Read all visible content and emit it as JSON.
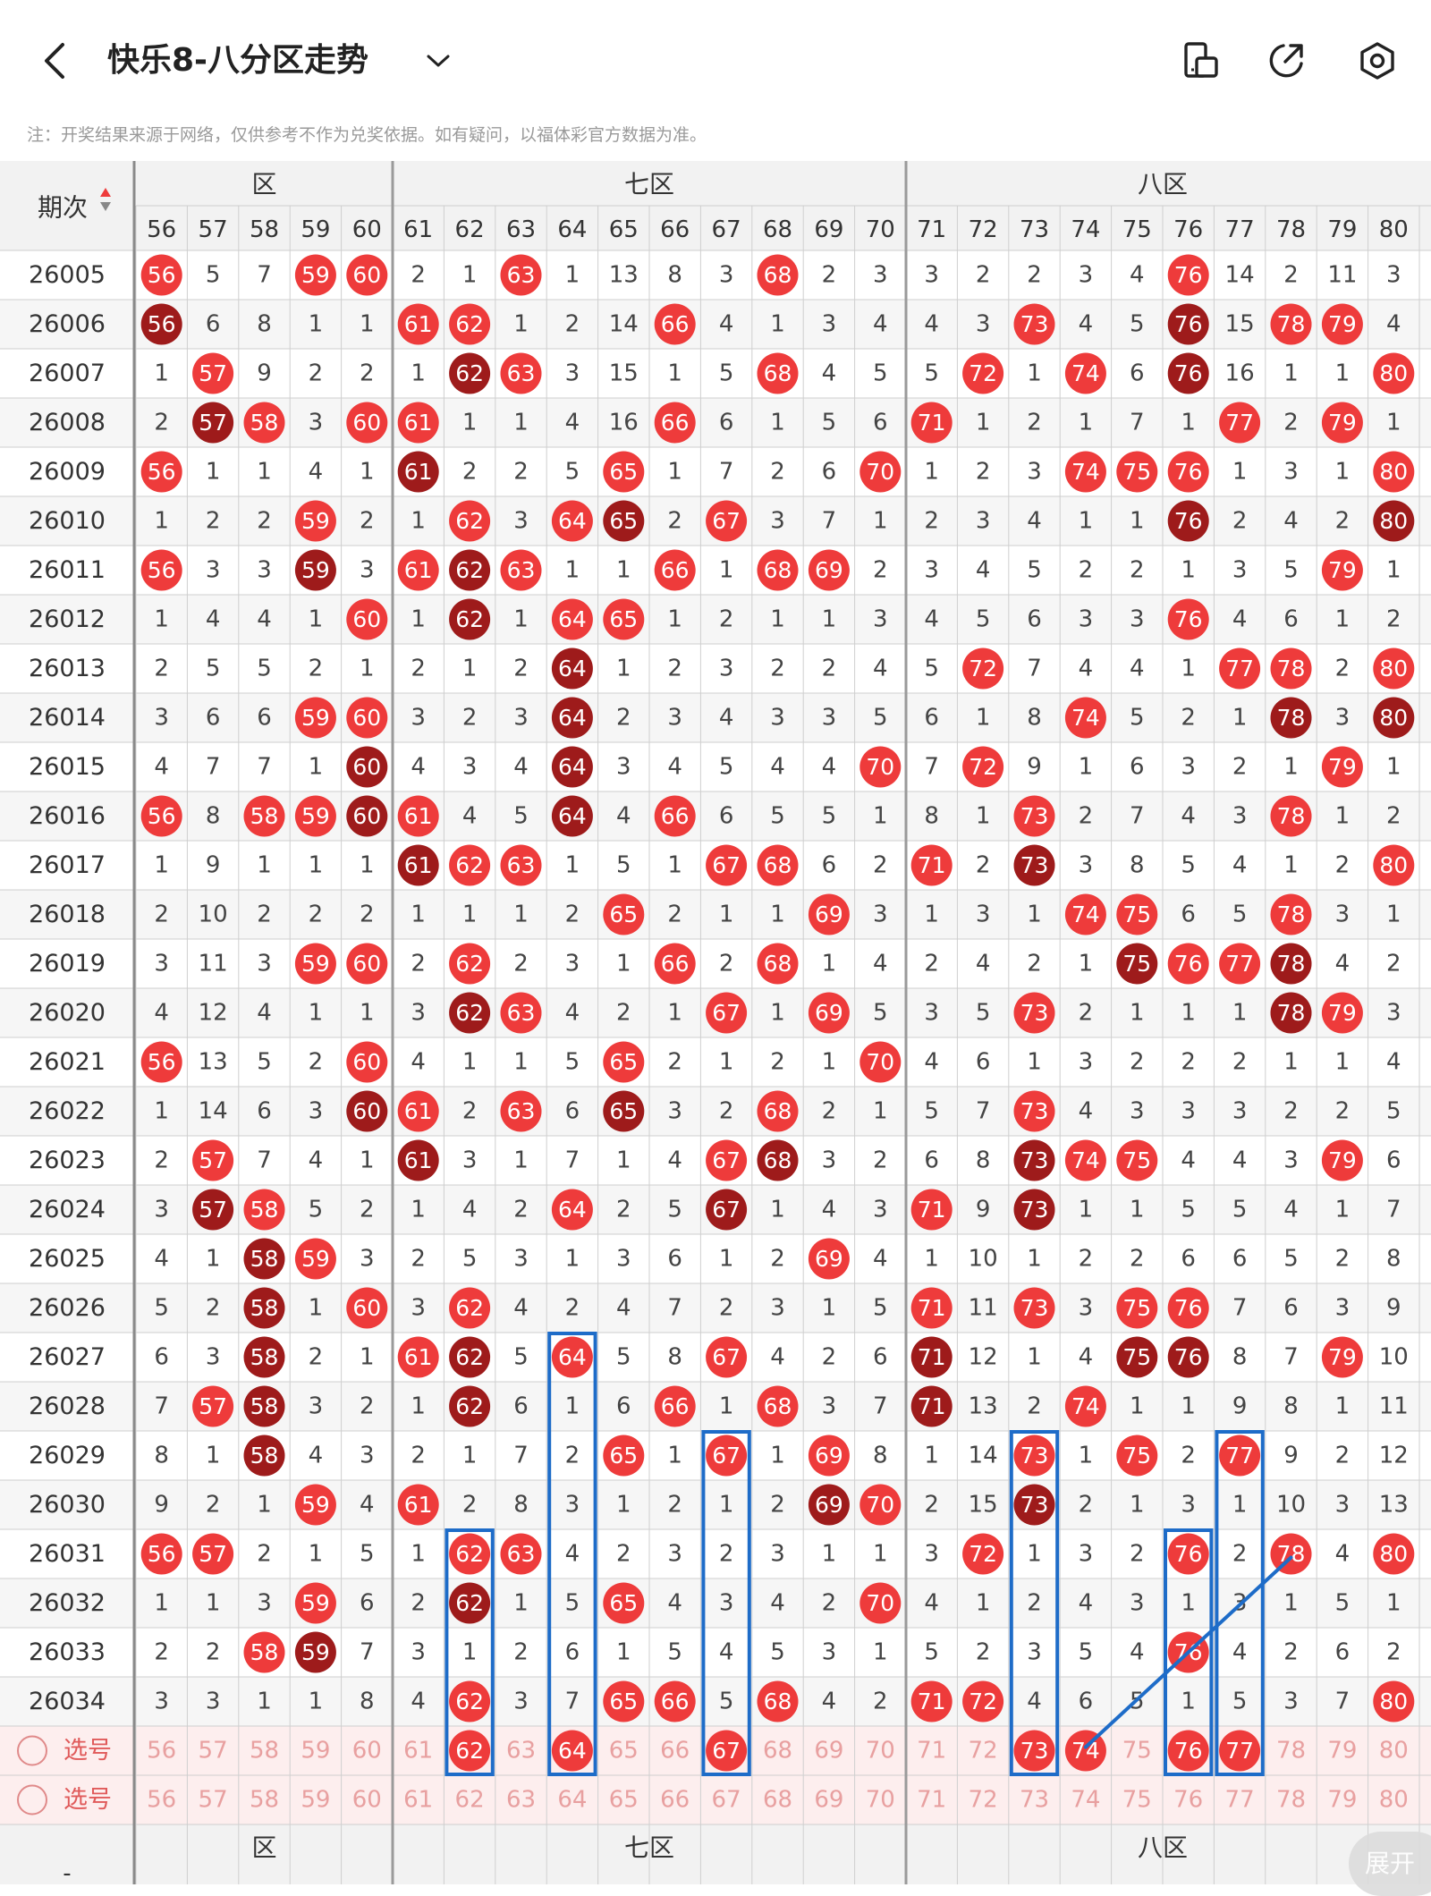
{
  "header": {
    "title": "快乐8-八分区走势",
    "back_icon": "chevron-left-icon",
    "dropdown_icon": "chevron-down-icon",
    "actions": [
      "layout-switch-icon",
      "share-icon",
      "settings-icon"
    ]
  },
  "notice": "注：开奖结果来源于网络，仅供参考不作为兑奖依据。如有疑问，以福体彩官方数据为准。",
  "table": {
    "issue_label": "期次",
    "zones": [
      {
        "name": "六区",
        "visible": "区"
      },
      {
        "name": "七区",
        "visible": "七区"
      },
      {
        "name": "八区",
        "visible": "八区"
      }
    ],
    "columns": [
      56,
      57,
      58,
      59,
      60,
      61,
      62,
      63,
      64,
      65,
      66,
      67,
      68,
      69,
      70,
      71,
      72,
      73,
      74,
      75,
      76,
      77,
      78,
      79,
      80
    ],
    "rows": [
      {
        "issue": "26005",
        "cells": [
          56,
          5,
          7,
          59,
          60,
          2,
          1,
          63,
          1,
          13,
          8,
          3,
          68,
          2,
          3,
          3,
          2,
          2,
          3,
          4,
          76,
          14,
          2,
          11,
          3
        ]
      },
      {
        "issue": "26006",
        "cells": [
          56,
          6,
          8,
          1,
          1,
          61,
          62,
          1,
          2,
          14,
          66,
          4,
          1,
          3,
          4,
          4,
          3,
          73,
          4,
          5,
          76,
          15,
          78,
          79,
          4
        ]
      },
      {
        "issue": "26007",
        "cells": [
          1,
          57,
          9,
          2,
          2,
          1,
          62,
          63,
          3,
          15,
          1,
          5,
          68,
          4,
          5,
          5,
          72,
          1,
          74,
          6,
          76,
          16,
          1,
          1,
          80
        ]
      },
      {
        "issue": "26008",
        "cells": [
          2,
          57,
          58,
          3,
          60,
          61,
          1,
          1,
          4,
          16,
          66,
          6,
          1,
          5,
          6,
          71,
          1,
          2,
          1,
          7,
          1,
          77,
          2,
          79,
          1
        ]
      },
      {
        "issue": "26009",
        "cells": [
          56,
          1,
          1,
          4,
          1,
          61,
          2,
          2,
          5,
          65,
          1,
          7,
          2,
          6,
          70,
          1,
          2,
          3,
          74,
          75,
          76,
          1,
          3,
          1,
          80
        ]
      },
      {
        "issue": "26010",
        "cells": [
          1,
          2,
          2,
          59,
          2,
          1,
          62,
          3,
          64,
          65,
          2,
          67,
          3,
          7,
          1,
          2,
          3,
          4,
          1,
          1,
          76,
          2,
          4,
          2,
          80
        ]
      },
      {
        "issue": "26011",
        "cells": [
          56,
          3,
          3,
          59,
          3,
          61,
          62,
          63,
          1,
          1,
          66,
          1,
          68,
          69,
          2,
          3,
          4,
          5,
          2,
          2,
          1,
          3,
          5,
          79,
          1
        ]
      },
      {
        "issue": "26012",
        "cells": [
          1,
          4,
          4,
          1,
          60,
          1,
          62,
          1,
          64,
          65,
          1,
          2,
          1,
          1,
          3,
          4,
          5,
          6,
          3,
          3,
          76,
          4,
          6,
          1,
          2
        ]
      },
      {
        "issue": "26013",
        "cells": [
          2,
          5,
          5,
          2,
          1,
          2,
          1,
          2,
          64,
          1,
          2,
          3,
          2,
          2,
          4,
          5,
          72,
          7,
          4,
          4,
          1,
          77,
          78,
          2,
          80
        ]
      },
      {
        "issue": "26014",
        "cells": [
          3,
          6,
          6,
          59,
          60,
          3,
          2,
          3,
          64,
          2,
          3,
          4,
          3,
          3,
          5,
          6,
          1,
          8,
          74,
          5,
          2,
          1,
          78,
          3,
          80
        ]
      },
      {
        "issue": "26015",
        "cells": [
          4,
          7,
          7,
          1,
          60,
          4,
          3,
          4,
          64,
          3,
          4,
          5,
          4,
          4,
          70,
          7,
          72,
          9,
          1,
          6,
          3,
          2,
          1,
          79,
          1
        ]
      },
      {
        "issue": "26016",
        "cells": [
          56,
          8,
          58,
          59,
          60,
          61,
          4,
          5,
          64,
          4,
          66,
          6,
          5,
          5,
          1,
          8,
          1,
          73,
          2,
          7,
          4,
          3,
          78,
          1,
          2
        ]
      },
      {
        "issue": "26017",
        "cells": [
          1,
          9,
          1,
          1,
          1,
          61,
          62,
          63,
          1,
          5,
          1,
          67,
          68,
          6,
          2,
          71,
          2,
          73,
          3,
          8,
          5,
          4,
          1,
          2,
          80
        ]
      },
      {
        "issue": "26018",
        "cells": [
          2,
          10,
          2,
          2,
          2,
          1,
          1,
          1,
          2,
          65,
          2,
          1,
          1,
          69,
          3,
          1,
          3,
          1,
          74,
          75,
          6,
          5,
          78,
          3,
          1
        ]
      },
      {
        "issue": "26019",
        "cells": [
          3,
          11,
          3,
          59,
          60,
          2,
          62,
          2,
          3,
          1,
          66,
          2,
          68,
          1,
          4,
          2,
          4,
          2,
          1,
          75,
          76,
          77,
          78,
          4,
          2
        ]
      },
      {
        "issue": "26020",
        "cells": [
          4,
          12,
          4,
          1,
          1,
          3,
          62,
          63,
          4,
          2,
          1,
          67,
          1,
          69,
          5,
          3,
          5,
          73,
          2,
          1,
          1,
          1,
          78,
          79,
          3
        ]
      },
      {
        "issue": "26021",
        "cells": [
          56,
          13,
          5,
          2,
          60,
          4,
          1,
          1,
          5,
          65,
          2,
          1,
          2,
          1,
          70,
          4,
          6,
          1,
          3,
          2,
          2,
          2,
          1,
          1,
          4
        ]
      },
      {
        "issue": "26022",
        "cells": [
          1,
          14,
          6,
          3,
          60,
          61,
          2,
          63,
          6,
          65,
          3,
          2,
          68,
          2,
          1,
          5,
          7,
          73,
          4,
          3,
          3,
          3,
          2,
          2,
          5
        ]
      },
      {
        "issue": "26023",
        "cells": [
          2,
          57,
          7,
          4,
          1,
          61,
          3,
          1,
          7,
          1,
          4,
          67,
          68,
          3,
          2,
          6,
          8,
          73,
          74,
          75,
          4,
          4,
          3,
          79,
          6
        ]
      },
      {
        "issue": "26024",
        "cells": [
          3,
          57,
          58,
          5,
          2,
          1,
          4,
          2,
          64,
          2,
          5,
          67,
          1,
          4,
          3,
          71,
          9,
          73,
          1,
          1,
          5,
          5,
          4,
          1,
          7
        ]
      },
      {
        "issue": "26025",
        "cells": [
          4,
          1,
          58,
          59,
          3,
          2,
          5,
          3,
          1,
          3,
          6,
          1,
          2,
          69,
          4,
          1,
          10,
          1,
          2,
          2,
          6,
          6,
          5,
          2,
          8
        ]
      },
      {
        "issue": "26026",
        "cells": [
          5,
          2,
          58,
          1,
          60,
          3,
          62,
          4,
          2,
          4,
          7,
          2,
          3,
          1,
          5,
          71,
          11,
          73,
          3,
          75,
          76,
          7,
          6,
          3,
          9
        ]
      },
      {
        "issue": "26027",
        "cells": [
          6,
          3,
          58,
          2,
          1,
          61,
          62,
          5,
          64,
          5,
          8,
          67,
          4,
          2,
          6,
          71,
          12,
          1,
          4,
          75,
          76,
          8,
          7,
          79,
          10
        ]
      },
      {
        "issue": "26028",
        "cells": [
          7,
          57,
          58,
          3,
          2,
          1,
          62,
          6,
          1,
          6,
          66,
          1,
          68,
          3,
          7,
          71,
          13,
          2,
          74,
          1,
          1,
          9,
          8,
          1,
          11
        ]
      },
      {
        "issue": "26029",
        "cells": [
          8,
          1,
          58,
          4,
          3,
          2,
          1,
          7,
          2,
          65,
          1,
          67,
          1,
          69,
          8,
          1,
          14,
          73,
          1,
          75,
          2,
          77,
          9,
          2,
          12
        ]
      },
      {
        "issue": "26030",
        "cells": [
          9,
          2,
          1,
          59,
          4,
          61,
          2,
          8,
          3,
          1,
          2,
          1,
          2,
          69,
          70,
          2,
          15,
          73,
          2,
          1,
          3,
          1,
          10,
          3,
          13
        ]
      },
      {
        "issue": "26031",
        "cells": [
          56,
          57,
          2,
          1,
          5,
          1,
          62,
          63,
          4,
          2,
          3,
          2,
          3,
          1,
          1,
          3,
          72,
          1,
          3,
          2,
          76,
          2,
          78,
          4,
          80
        ]
      },
      {
        "issue": "26032",
        "cells": [
          1,
          1,
          3,
          59,
          6,
          2,
          62,
          1,
          5,
          65,
          4,
          3,
          4,
          2,
          70,
          4,
          1,
          2,
          4,
          3,
          1,
          3,
          1,
          5,
          1
        ]
      },
      {
        "issue": "26033",
        "cells": [
          2,
          2,
          58,
          59,
          7,
          3,
          1,
          2,
          6,
          1,
          5,
          4,
          5,
          3,
          1,
          5,
          2,
          3,
          5,
          4,
          76,
          4,
          2,
          6,
          2
        ]
      },
      {
        "issue": "26034",
        "cells": [
          3,
          3,
          1,
          1,
          8,
          4,
          62,
          3,
          7,
          65,
          66,
          5,
          68,
          4,
          2,
          71,
          72,
          4,
          6,
          5,
          1,
          5,
          3,
          7,
          80
        ]
      }
    ],
    "select_rows": [
      {
        "label": "选号",
        "cells": [
          56,
          57,
          58,
          59,
          60,
          61,
          62,
          63,
          64,
          65,
          66,
          67,
          68,
          69,
          70,
          71,
          72,
          73,
          74,
          75,
          76,
          77,
          78,
          79,
          80
        ],
        "selected": [
          62,
          64,
          67,
          73,
          74,
          76,
          77
        ]
      },
      {
        "label": "选号",
        "cells": [
          56,
          57,
          58,
          59,
          60,
          61,
          62,
          63,
          64,
          65,
          66,
          67,
          68,
          69,
          70,
          71,
          72,
          73,
          74,
          75,
          76,
          77,
          78,
          79,
          80
        ],
        "selected": []
      }
    ],
    "footer_issue": "-"
  },
  "expand_label": "展开",
  "colors": {
    "hit": "#ee3b3b",
    "repeat": "#9e1b1b",
    "annotation": "#1e6cc8",
    "grid": "#cfcfcf",
    "band": "#f7f0f0",
    "select_bg": "#fdeeee",
    "zone_bg": "#f2f2f2"
  }
}
